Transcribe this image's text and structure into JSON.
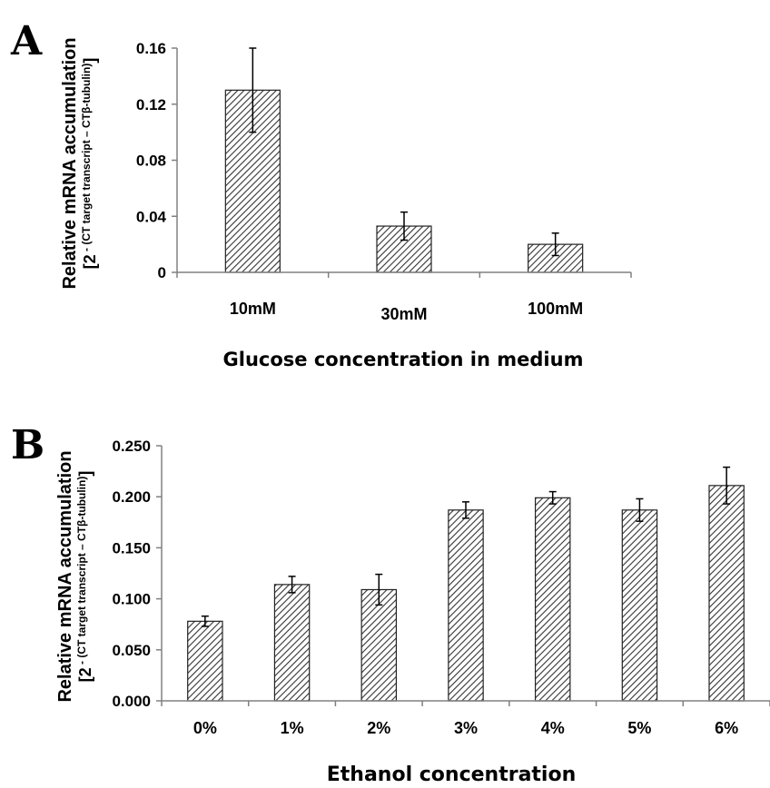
{
  "chart_data": [
    {
      "panel": "A",
      "type": "bar",
      "categories": [
        "10mM",
        "30mM",
        "100mM"
      ],
      "values": [
        0.13,
        0.033,
        0.02
      ],
      "errors": [
        0.03,
        0.01,
        0.008
      ],
      "xlabel": "Glucose concentration in medium",
      "ylabel": "Relative mRNA accumulation",
      "ylabel2_prefix": "[2",
      "ylabel2_exp": " - (CT target transcript – CTβ-tubulin)",
      "ylabel2_suffix": "]",
      "yticks": [
        "0",
        "0.04",
        "0.08",
        "0.12",
        "0.16"
      ],
      "ylim": [
        0,
        0.16
      ],
      "grid": false,
      "bar_fill": "hatched"
    },
    {
      "panel": "B",
      "type": "bar",
      "categories": [
        "0%",
        "1%",
        "2%",
        "3%",
        "4%",
        "5%",
        "6%"
      ],
      "values": [
        0.078,
        0.114,
        0.109,
        0.187,
        0.199,
        0.187,
        0.211
      ],
      "errors": [
        0.005,
        0.008,
        0.015,
        0.008,
        0.006,
        0.011,
        0.018
      ],
      "xlabel": "Ethanol concentration",
      "ylabel": "Relative mRNA accumulation",
      "ylabel2_prefix": "[2",
      "ylabel2_exp": " - (CT target transcript – CTβ-tubulin)",
      "ylabel2_suffix": "]",
      "yticks": [
        "0.000",
        "0.050",
        "0.100",
        "0.150",
        "0.200",
        "0.250"
      ],
      "ylim": [
        0,
        0.25
      ],
      "grid": false,
      "bar_fill": "hatched"
    }
  ]
}
